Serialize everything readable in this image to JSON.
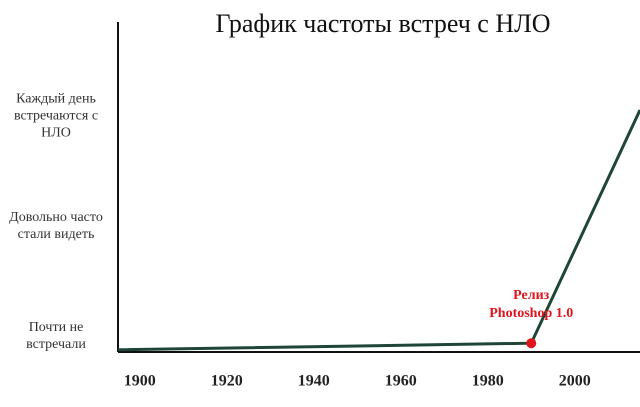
{
  "chart_data": {
    "type": "line",
    "title": "График частоты встреч с НЛО",
    "x": [
      1895,
      1990,
      2015
    ],
    "values": [
      0.87,
      0.93,
      3.05
    ],
    "color": "#1e4536",
    "marker_color": "#e0141c",
    "annotation": "Релиз Photoshop 1.0",
    "xlim": [
      1895,
      2015
    ],
    "xticks": [
      1900,
      1920,
      1940,
      1960,
      1980,
      2000
    ],
    "ylim": [
      0.85,
      3.85
    ],
    "yticks": [
      {
        "value": 1,
        "label": "Почти не встречали"
      },
      {
        "value": 2,
        "label": "Довольно часто стали видеть"
      },
      {
        "value": 3,
        "label": "Каждый день встречаются с НЛО"
      }
    ]
  }
}
